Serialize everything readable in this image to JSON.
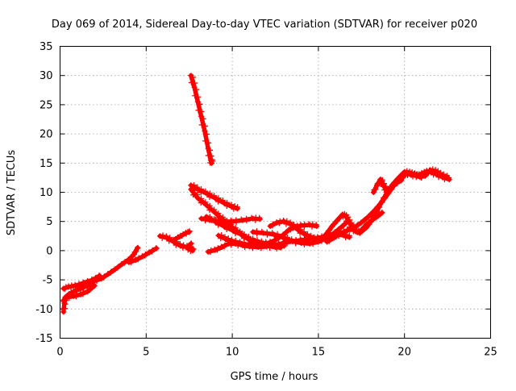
{
  "chart_data": {
    "type": "scatter",
    "title": "Day 069 of 2014, Sidereal Day-to-day VTEC variation (SDTVAR) for receiver p020",
    "xlabel": "GPS time / hours",
    "ylabel": "SDTVAR / TECUs",
    "xlim": [
      0,
      25
    ],
    "ylim": [
      -15,
      35
    ],
    "xticks": [
      0,
      5,
      10,
      15,
      20,
      25
    ],
    "yticks": [
      -15,
      -10,
      -5,
      0,
      5,
      10,
      15,
      20,
      25,
      30,
      35
    ],
    "grid": true,
    "legend": "none",
    "marker_color": "#ff0000",
    "series": [
      {
        "name": "arc-early-rise",
        "points": [
          [
            0.2,
            -10.5
          ],
          [
            0.25,
            -9.0
          ],
          [
            0.3,
            -8.0
          ],
          [
            0.5,
            -7.5
          ],
          [
            0.8,
            -7.0
          ],
          [
            1.2,
            -6.5
          ],
          [
            1.6,
            -6.0
          ],
          [
            2.0,
            -5.2
          ],
          [
            2.4,
            -4.8
          ],
          [
            2.8,
            -4.0
          ],
          [
            3.2,
            -3.2
          ],
          [
            3.6,
            -2.3
          ],
          [
            4.0,
            -1.5
          ],
          [
            4.3,
            -0.6
          ],
          [
            4.5,
            0.5
          ]
        ]
      },
      {
        "name": "arc-early-rise-lower",
        "points": [
          [
            0.2,
            -8.5
          ],
          [
            0.4,
            -8.0
          ],
          [
            0.8,
            -7.8
          ],
          [
            1.2,
            -7.5
          ],
          [
            1.6,
            -7.0
          ],
          [
            2.0,
            -6.0
          ]
        ]
      },
      {
        "name": "arc-early-rise-upper",
        "points": [
          [
            0.2,
            -6.5
          ],
          [
            0.5,
            -6.2
          ],
          [
            0.9,
            -6.0
          ],
          [
            1.4,
            -5.5
          ],
          [
            1.9,
            -5.0
          ],
          [
            2.3,
            -4.3
          ]
        ]
      },
      {
        "name": "arc-early-flat",
        "points": [
          [
            4.0,
            -2.0
          ],
          [
            4.4,
            -1.6
          ],
          [
            4.8,
            -1.0
          ],
          [
            5.2,
            -0.3
          ],
          [
            5.6,
            0.4
          ]
        ]
      },
      {
        "name": "arc-mid-a",
        "points": [
          [
            5.8,
            2.5
          ],
          [
            6.2,
            2.2
          ],
          [
            6.6,
            1.5
          ],
          [
            7.0,
            0.8
          ],
          [
            7.4,
            0.6
          ],
          [
            7.6,
            1.2
          ]
        ]
      },
      {
        "name": "arc-mid-b",
        "points": [
          [
            6.7,
            2.0
          ],
          [
            7.0,
            2.5
          ],
          [
            7.3,
            3.0
          ],
          [
            7.5,
            3.2
          ]
        ]
      },
      {
        "name": "arc-mid-c",
        "points": [
          [
            7.4,
            0.5
          ],
          [
            7.6,
            0.2
          ],
          [
            7.7,
            0.0
          ]
        ]
      },
      {
        "name": "arc-steep-drop",
        "points": [
          [
            7.6,
            30.0
          ],
          [
            7.8,
            28.0
          ],
          [
            8.0,
            25.5
          ],
          [
            8.2,
            23.0
          ],
          [
            8.4,
            20.5
          ],
          [
            8.6,
            17.5
          ],
          [
            8.75,
            15.5
          ],
          [
            8.8,
            15.0
          ]
        ]
      },
      {
        "name": "arc-descend-1",
        "points": [
          [
            7.6,
            11.2
          ],
          [
            8.0,
            10.5
          ],
          [
            8.5,
            9.8
          ],
          [
            9.0,
            9.0
          ],
          [
            9.5,
            8.2
          ],
          [
            10.0,
            7.5
          ],
          [
            10.3,
            7.2
          ]
        ]
      },
      {
        "name": "arc-descend-2",
        "points": [
          [
            7.6,
            10.5
          ],
          [
            8.0,
            9.0
          ],
          [
            8.5,
            7.8
          ],
          [
            9.0,
            6.5
          ],
          [
            9.5,
            5.2
          ],
          [
            10.0,
            4.0
          ],
          [
            10.5,
            2.8
          ],
          [
            11.0,
            1.8
          ],
          [
            11.5,
            1.2
          ],
          [
            12.0,
            0.8
          ],
          [
            12.5,
            0.6
          ],
          [
            12.8,
            0.5
          ]
        ]
      },
      {
        "name": "arc-descend-3",
        "points": [
          [
            8.5,
            5.8
          ],
          [
            9.0,
            5.0
          ],
          [
            9.5,
            4.2
          ],
          [
            10.0,
            3.5
          ],
          [
            10.5,
            2.8
          ],
          [
            11.0,
            2.0
          ],
          [
            11.5,
            1.5
          ],
          [
            12.0,
            1.2
          ],
          [
            12.5,
            1.0
          ],
          [
            13.0,
            0.8
          ]
        ]
      },
      {
        "name": "arc-horizontal-5",
        "points": [
          [
            8.2,
            5.5
          ],
          [
            8.8,
            5.2
          ],
          [
            9.4,
            4.9
          ],
          [
            10.0,
            5.0
          ],
          [
            10.6,
            5.2
          ],
          [
            11.2,
            5.5
          ],
          [
            11.6,
            5.4
          ]
        ]
      },
      {
        "name": "arc-low-mid",
        "points": [
          [
            8.6,
            -0.2
          ],
          [
            9.0,
            0.1
          ],
          [
            9.4,
            0.6
          ],
          [
            9.8,
            1.2
          ],
          [
            10.2,
            1.2
          ],
          [
            10.6,
            0.9
          ],
          [
            11.0,
            0.7
          ],
          [
            11.5,
            0.6
          ],
          [
            12.0,
            0.7
          ]
        ]
      },
      {
        "name": "arc-loop",
        "points": [
          [
            9.2,
            2.6
          ],
          [
            9.6,
            2.0
          ],
          [
            10.0,
            1.6
          ],
          [
            10.5,
            1.2
          ],
          [
            11.0,
            1.0
          ],
          [
            11.5,
            1.0
          ],
          [
            12.0,
            1.2
          ],
          [
            12.5,
            1.8
          ],
          [
            13.0,
            2.8
          ],
          [
            13.3,
            3.6
          ],
          [
            13.6,
            4.0
          ],
          [
            14.0,
            4.3
          ],
          [
            14.5,
            4.4
          ],
          [
            14.9,
            4.2
          ]
        ]
      },
      {
        "name": "arc-cross",
        "points": [
          [
            11.2,
            3.2
          ],
          [
            11.8,
            3.0
          ],
          [
            12.4,
            2.8
          ],
          [
            13.0,
            2.2
          ],
          [
            13.5,
            1.6
          ],
          [
            14.0,
            1.3
          ],
          [
            14.5,
            1.2
          ],
          [
            15.0,
            1.5
          ],
          [
            15.5,
            2.2
          ],
          [
            16.0,
            3.2
          ],
          [
            16.4,
            4.2
          ],
          [
            16.7,
            5.0
          ]
        ]
      },
      {
        "name": "arc-bump",
        "points": [
          [
            12.2,
            4.2
          ],
          [
            12.6,
            4.8
          ],
          [
            13.0,
            5.0
          ],
          [
            13.4,
            4.5
          ],
          [
            13.8,
            3.6
          ],
          [
            14.2,
            2.8
          ],
          [
            14.6,
            2.2
          ],
          [
            15.0,
            1.8
          ]
        ]
      },
      {
        "name": "arc-low-run",
        "points": [
          [
            12.5,
            1.0
          ],
          [
            13.0,
            1.3
          ],
          [
            13.5,
            1.6
          ],
          [
            14.0,
            1.8
          ],
          [
            14.5,
            2.0
          ],
          [
            15.0,
            2.2
          ],
          [
            15.5,
            2.5
          ],
          [
            16.0,
            2.8
          ],
          [
            16.5,
            2.6
          ],
          [
            16.8,
            2.3
          ]
        ]
      },
      {
        "name": "arc-wave-1",
        "points": [
          [
            15.2,
            2.0
          ],
          [
            15.5,
            3.0
          ],
          [
            15.8,
            4.2
          ],
          [
            16.1,
            5.2
          ],
          [
            16.4,
            6.2
          ],
          [
            16.6,
            5.8
          ],
          [
            16.8,
            4.8
          ],
          [
            17.0,
            3.8
          ],
          [
            17.2,
            3.2
          ],
          [
            17.5,
            3.5
          ],
          [
            17.8,
            4.5
          ],
          [
            18.1,
            5.2
          ],
          [
            18.4,
            5.8
          ],
          [
            18.7,
            6.5
          ]
        ]
      },
      {
        "name": "arc-wave-2",
        "points": [
          [
            15.5,
            1.5
          ],
          [
            15.9,
            2.2
          ],
          [
            16.3,
            3.0
          ],
          [
            16.7,
            3.5
          ],
          [
            17.1,
            4.0
          ],
          [
            17.5,
            4.8
          ],
          [
            17.9,
            5.8
          ],
          [
            18.3,
            7.0
          ],
          [
            18.7,
            8.4
          ],
          [
            19.1,
            10.0
          ],
          [
            19.4,
            11.2
          ]
        ]
      },
      {
        "name": "arc-wave-3",
        "points": [
          [
            17.4,
            3.0
          ],
          [
            17.8,
            4.0
          ],
          [
            18.1,
            5.2
          ],
          [
            18.4,
            6.8
          ],
          [
            18.7,
            8.5
          ],
          [
            19.0,
            10.0
          ],
          [
            19.3,
            11.3
          ],
          [
            19.6,
            12.3
          ],
          [
            19.9,
            13.2
          ]
        ]
      },
      {
        "name": "arc-wave-4",
        "points": [
          [
            18.2,
            10.0
          ],
          [
            18.4,
            11.2
          ],
          [
            18.6,
            12.2
          ],
          [
            18.8,
            11.0
          ],
          [
            19.0,
            10.2
          ],
          [
            19.2,
            10.6
          ],
          [
            19.5,
            11.5
          ],
          [
            19.8,
            12.0
          ]
        ]
      },
      {
        "name": "arc-late",
        "points": [
          [
            19.9,
            12.5
          ],
          [
            20.1,
            13.2
          ],
          [
            20.4,
            13.0
          ],
          [
            20.7,
            12.8
          ],
          [
            21.0,
            13.2
          ],
          [
            21.3,
            13.6
          ],
          [
            21.6,
            13.4
          ],
          [
            21.9,
            13.0
          ],
          [
            22.2,
            12.6
          ],
          [
            22.6,
            12.2
          ]
        ]
      },
      {
        "name": "arc-late-2",
        "points": [
          [
            20.0,
            13.5
          ],
          [
            20.3,
            13.3
          ],
          [
            20.6,
            13.0
          ],
          [
            20.9,
            12.6
          ],
          [
            21.2,
            12.8
          ],
          [
            21.5,
            13.8
          ],
          [
            21.8,
            13.6
          ],
          [
            22.1,
            13.0
          ],
          [
            22.5,
            12.5
          ]
        ]
      }
    ]
  }
}
